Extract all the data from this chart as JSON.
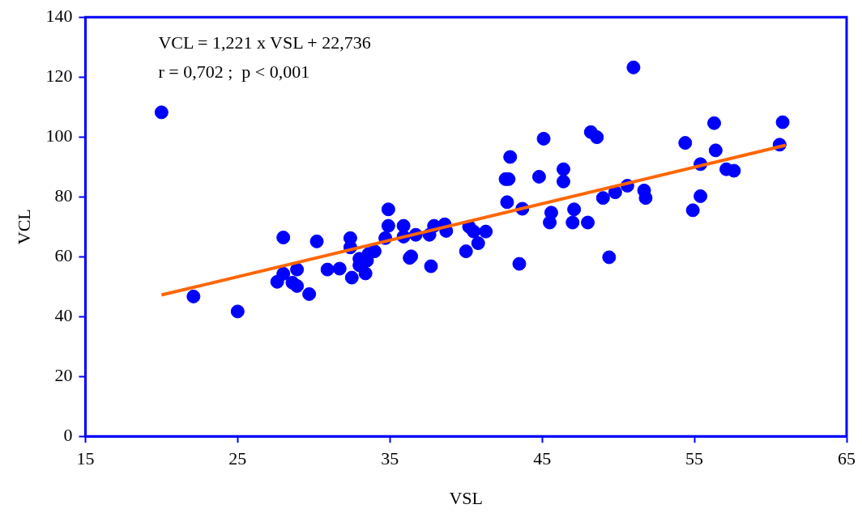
{
  "chart_data": {
    "type": "scatter",
    "xlabel": "VSL",
    "ylabel": "VCL",
    "xlim": [
      15,
      65
    ],
    "xticks": [
      15,
      25,
      35,
      45,
      55,
      65
    ],
    "ylim": [
      0,
      140
    ],
    "yticks": [
      0,
      20,
      40,
      60,
      80,
      100,
      120,
      140
    ],
    "grid": false,
    "legend": false,
    "marker": "circle",
    "annotations": [
      "VCL = 1,221 x VSL + 22,736",
      "r = 0,702 ;  p < 0,001"
    ],
    "series": [
      {
        "color": "#0000ff",
        "x": [
          20.0,
          22.1,
          25.0,
          27.6,
          28.0,
          28.0,
          28.6,
          28.9,
          28.9,
          29.7,
          30.2,
          30.9,
          31.7,
          32.4,
          32.4,
          32.5,
          33.0,
          33.0,
          33.4,
          33.5,
          33.6,
          34.0,
          34.9,
          34.9,
          34.7,
          35.9,
          35.9,
          36.3,
          36.4,
          36.7,
          37.6,
          37.7,
          37.9,
          38.6,
          38.7,
          40.0,
          40.2,
          40.5,
          40.8,
          41.3,
          42.6,
          42.8,
          42.7,
          42.9,
          43.5,
          43.7,
          44.8,
          45.1,
          45.5,
          45.6,
          46.4,
          46.4,
          47.0,
          47.1,
          48.0,
          48.2,
          48.6,
          49.0,
          49.4,
          49.8,
          50.6,
          51.0,
          51.7,
          51.8,
          54.4,
          54.9,
          55.4,
          55.4,
          56.3,
          56.4,
          57.1,
          57.6,
          60.6,
          60.8
        ],
        "values": [
          108.2,
          46.7,
          41.7,
          51.6,
          66.4,
          54.3,
          51.3,
          55.7,
          50.2,
          47.5,
          65.1,
          55.7,
          56.0,
          66.2,
          63.1,
          53.0,
          57.1,
          59.3,
          54.4,
          58.7,
          60.9,
          61.8,
          75.8,
          70.3,
          66.2,
          70.3,
          66.7,
          59.6,
          60.1,
          67.3,
          67.3,
          56.8,
          70.3,
          70.8,
          68.6,
          61.8,
          70.0,
          68.4,
          64.5,
          68.4,
          85.9,
          85.9,
          78.2,
          93.3,
          57.6,
          76.0,
          86.7,
          99.4,
          71.4,
          74.7,
          85.1,
          89.2,
          71.4,
          75.8,
          71.4,
          101.6,
          99.9,
          79.6,
          59.8,
          81.5,
          83.7,
          123.2,
          82.1,
          79.6,
          98.0,
          75.5,
          90.9,
          80.2,
          104.6,
          95.5,
          89.2,
          88.7,
          97.4,
          104.9
        ]
      },
      {
        "type": "line",
        "color": "#ff6600",
        "marker": "none",
        "x": [
          20,
          61
        ],
        "values": [
          47.2,
          97.2
        ]
      }
    ]
  }
}
